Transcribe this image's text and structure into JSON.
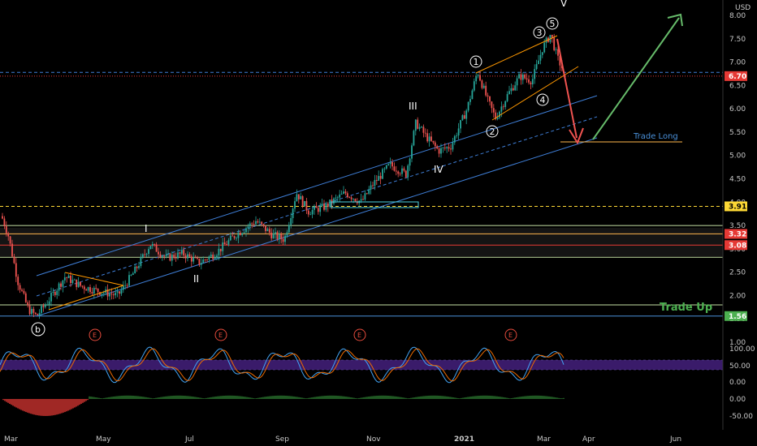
{
  "chart_data": {
    "type": "candlestick",
    "currency": "USD",
    "price_axis": {
      "min": 1.0,
      "max": 8.0,
      "ticks": [
        "8.00",
        "7.50",
        "7.00",
        "6.50",
        "6.00",
        "5.50",
        "5.00",
        "4.50",
        "4.00",
        "3.50",
        "3.00",
        "2.50",
        "2.00",
        "1.50",
        "1.00"
      ],
      "tick_values": [
        8.0,
        7.5,
        7.0,
        6.5,
        6.0,
        5.5,
        5.0,
        4.5,
        4.0,
        3.5,
        3.0,
        2.5,
        2.0,
        1.5,
        1.0
      ]
    },
    "oscillator_axis": {
      "ticks": [
        "100.00",
        "50.00",
        "0.00"
      ],
      "tick_values": [
        100,
        50,
        0
      ]
    },
    "macd_axis": {
      "ticks": [
        "0.00",
        "-50.00"
      ],
      "tick_values": [
        0,
        -50
      ]
    },
    "time_axis": [
      "Mar",
      "May",
      "Jul",
      "Sep",
      "Nov",
      "2021",
      "Mar",
      "Apr",
      "Jun"
    ],
    "price_badges": [
      {
        "label": "6.70",
        "value": 6.7,
        "color": "#e53935"
      },
      {
        "label": "3.91",
        "value": 3.91,
        "color": "#fdd835"
      },
      {
        "label": "3.32",
        "value": 3.32,
        "color": "#e53935"
      },
      {
        "label": "3.08",
        "value": 3.08,
        "color": "#e53935"
      },
      {
        "label": "1.56",
        "value": 1.56,
        "color": "#4caf50"
      }
    ],
    "horizontal_levels": [
      {
        "value": 6.78,
        "color": "#3f7fd8",
        "style": "dashed"
      },
      {
        "value": 6.7,
        "color": "#e53935",
        "style": "dotted"
      },
      {
        "value": 3.91,
        "color": "#fdd835",
        "style": "dashed"
      },
      {
        "value": 3.5,
        "color": "#c5e1a5",
        "style": "solid"
      },
      {
        "value": 3.32,
        "color": "#ffb74d",
        "style": "solid"
      },
      {
        "value": 3.08,
        "color": "#e53935",
        "style": "solid"
      },
      {
        "value": 2.82,
        "color": "#c5e1a5",
        "style": "solid"
      },
      {
        "value": 1.8,
        "color": "#c5e1a5",
        "style": "solid"
      },
      {
        "value": 1.56,
        "color": "#4a90d9",
        "style": "solid"
      }
    ],
    "wave_labels": {
      "primary": [
        "I",
        "II",
        "III",
        "IV",
        "V"
      ],
      "sub": [
        "1",
        "2",
        "3",
        "4",
        "5"
      ],
      "corrective": "b"
    },
    "annotations": {
      "trade_long": "Trade Long",
      "trade_up": "Trade Up",
      "earnings": "E"
    },
    "colors": {
      "up": "#26a69a",
      "down": "#ef5350",
      "channel": "#3f7fd8",
      "orange": "#ff9800",
      "green_arrow": "#66bb6a",
      "red_arrow": "#ef5350"
    }
  }
}
